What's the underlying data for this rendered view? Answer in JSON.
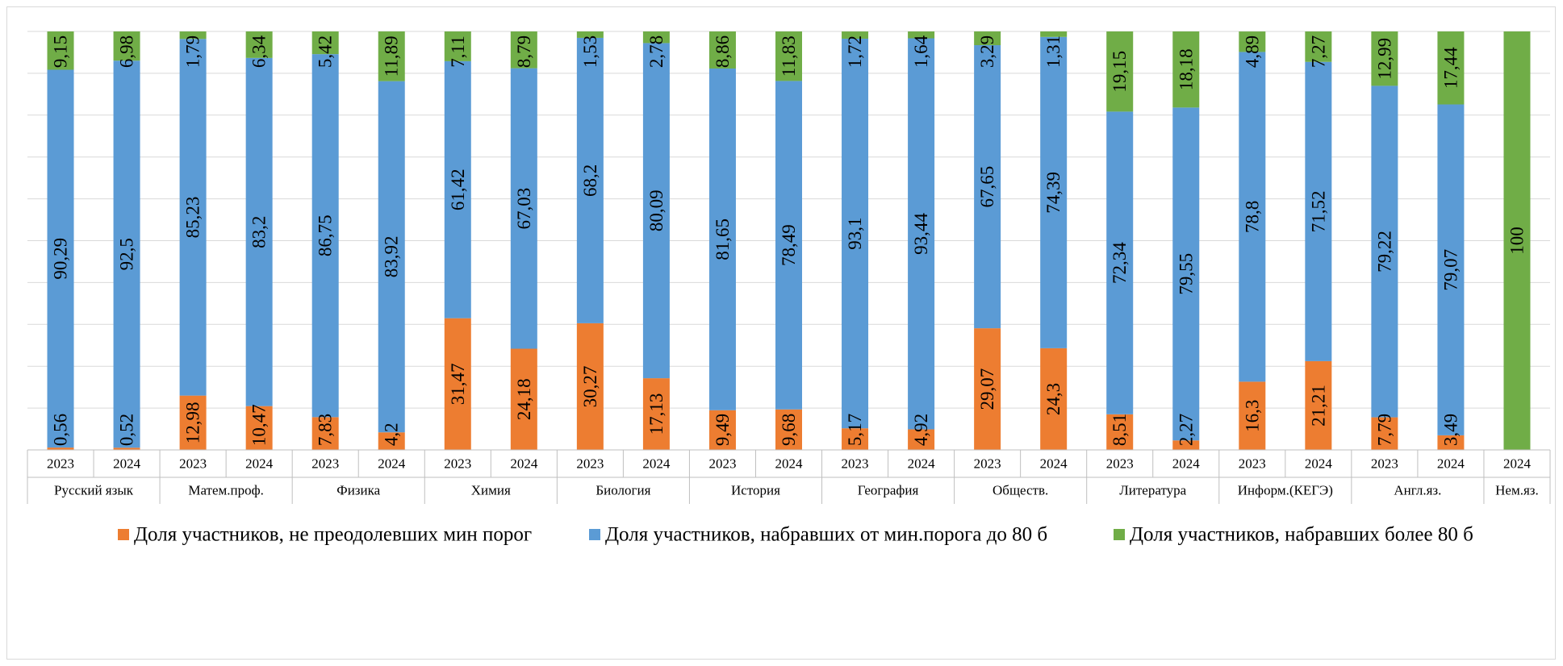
{
  "chart_data": {
    "type": "bar",
    "stacked": true,
    "percent_stacked": true,
    "grid": true,
    "legend_position": "bottom",
    "categories": [
      {
        "subject": "Русский язык",
        "year": "2023"
      },
      {
        "subject": "Русский язык",
        "year": "2024"
      },
      {
        "subject": "Матем.проф.",
        "year": "2023"
      },
      {
        "subject": "Матем.проф.",
        "year": "2024"
      },
      {
        "subject": "Физика",
        "year": "2023"
      },
      {
        "subject": "Физика",
        "year": "2024"
      },
      {
        "subject": "Химия",
        "year": "2023"
      },
      {
        "subject": "Химия",
        "year": "2024"
      },
      {
        "subject": "Биология",
        "year": "2023"
      },
      {
        "subject": "Биология",
        "year": "2024"
      },
      {
        "subject": "История",
        "year": "2023"
      },
      {
        "subject": "История",
        "year": "2024"
      },
      {
        "subject": "География",
        "year": "2023"
      },
      {
        "subject": "География",
        "year": "2024"
      },
      {
        "subject": "Обществ.",
        "year": "2023"
      },
      {
        "subject": "Обществ.",
        "year": "2024"
      },
      {
        "subject": "Литература",
        "year": "2023"
      },
      {
        "subject": "Литература",
        "year": "2024"
      },
      {
        "subject": "Информ.(КЕГЭ)",
        "year": "2023"
      },
      {
        "subject": "Информ.(КЕГЭ)",
        "year": "2024"
      },
      {
        "subject": "Англ.яз.",
        "year": "2023"
      },
      {
        "subject": "Англ.яз.",
        "year": "2024"
      },
      {
        "subject": "Нем.яз.",
        "year": "2024"
      }
    ],
    "groups": [
      "Русский язык",
      "Матем.проф.",
      "Физика",
      "Химия",
      "Биология",
      "История",
      "География",
      "Обществ.",
      "Литература",
      "Информ.(КЕГЭ)",
      "Англ.яз.",
      "Нем.яз."
    ],
    "series": [
      {
        "name": "Доля участников, не преодолевших мин порог",
        "color": "#ed7d31",
        "values": [
          0.56,
          0.52,
          12.98,
          10.47,
          7.83,
          4.2,
          31.47,
          24.18,
          30.27,
          17.13,
          9.49,
          9.68,
          5.17,
          4.92,
          29.07,
          24.3,
          8.51,
          2.27,
          16.3,
          21.21,
          7.79,
          3.49,
          null
        ],
        "labels": [
          "0,56",
          "0,52",
          "12,98",
          "10,47",
          "7,83",
          "4,2",
          "31,47",
          "24,18",
          "30,27",
          "17,13",
          "9,49",
          "9,68",
          "5,17",
          "4,92",
          "29,07",
          "24,3",
          "8,51",
          "2,27",
          "16,3",
          "21,21",
          "7,79",
          "3,49",
          ""
        ]
      },
      {
        "name": "Доля участников, набравших от мин.порога до 80 б",
        "color": "#5b9bd5",
        "values": [
          90.29,
          92.5,
          85.23,
          83.2,
          86.75,
          83.92,
          61.42,
          67.03,
          68.2,
          80.09,
          81.65,
          78.49,
          93.1,
          93.44,
          67.65,
          74.39,
          72.34,
          79.55,
          78.8,
          71.52,
          79.22,
          79.07,
          null
        ],
        "labels": [
          "90,29",
          "92,5",
          "85,23",
          "83,2",
          "86,75",
          "83,92",
          "61,42",
          "67,03",
          "68,2",
          "80,09",
          "81,65",
          "78,49",
          "93,1",
          "93,44",
          "67,65",
          "74,39",
          "72,34",
          "79,55",
          "78,8",
          "71,52",
          "79,22",
          "79,07",
          ""
        ]
      },
      {
        "name": "Доля участников, набравших более 80 б",
        "color": "#70ad47",
        "values": [
          9.15,
          6.98,
          1.79,
          6.34,
          5.42,
          11.89,
          7.11,
          8.79,
          1.53,
          2.78,
          8.86,
          11.83,
          1.72,
          1.64,
          3.29,
          1.31,
          19.15,
          18.18,
          4.89,
          7.27,
          12.99,
          17.44,
          100
        ],
        "labels": [
          "9,15",
          "6,98",
          "1,79",
          "6,34",
          "5,42",
          "11,89",
          "7,11",
          "8,79",
          "1,53",
          "2,78",
          "8,86",
          "11,83",
          "1,72",
          "1,64",
          "3,29",
          "1,31",
          "19,15",
          "18,18",
          "4,89",
          "7,27",
          "12,99",
          "17,44",
          "100"
        ]
      }
    ]
  }
}
